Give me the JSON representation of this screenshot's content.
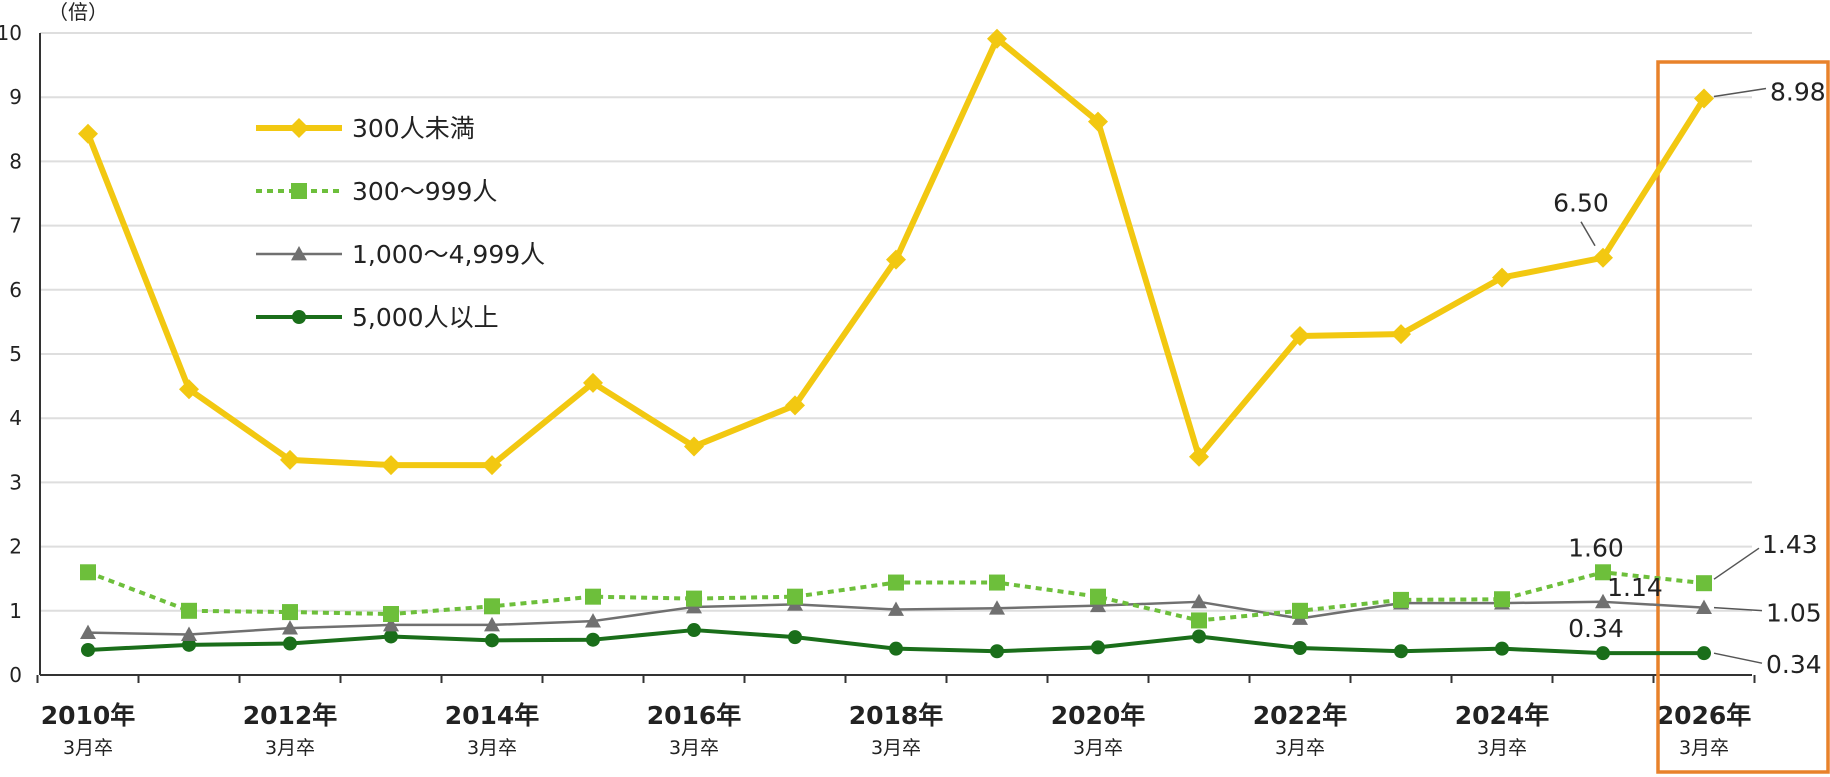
{
  "chart_data": {
    "type": "line",
    "y_unit": "（倍）",
    "ylim": [
      0,
      10
    ],
    "yticks": [
      "0",
      "1",
      "2",
      "3",
      "4",
      "5",
      "6",
      "7",
      "8",
      "9",
      "10"
    ],
    "x_labels": [
      {
        "year": "2010年",
        "sub": "3月卒"
      },
      {
        "year": "2012年",
        "sub": "3月卒"
      },
      {
        "year": "2014年",
        "sub": "3月卒"
      },
      {
        "year": "2016年",
        "sub": "3月卒"
      },
      {
        "year": "2018年",
        "sub": "3月卒"
      },
      {
        "year": "2020年",
        "sub": "3月卒"
      },
      {
        "year": "2022年",
        "sub": "3月卒"
      },
      {
        "year": "2024年",
        "sub": "3月卒"
      },
      {
        "year": "2026年",
        "sub": "3月卒"
      }
    ],
    "x": [
      2010,
      2011,
      2012,
      2013,
      2014,
      2015,
      2016,
      2017,
      2018,
      2019,
      2020,
      2021,
      2022,
      2023,
      2024,
      2025,
      2026
    ],
    "grid": "horizontal",
    "legend_position": "upper-left",
    "highlight_color": "#e8822b",
    "series": [
      {
        "name": "300人未満",
        "color": "#f2c811",
        "style": "solid",
        "marker": "diamond",
        "values": [
          8.43,
          4.45,
          3.35,
          3.27,
          3.27,
          4.55,
          3.56,
          4.2,
          6.47,
          9.91,
          8.62,
          3.4,
          5.28,
          5.31,
          6.19,
          6.5,
          8.98
        ]
      },
      {
        "name": "300～999人",
        "color": "#6dbf3b",
        "style": "dotted",
        "marker": "square",
        "values": [
          1.6,
          1.0,
          0.98,
          0.95,
          1.07,
          1.22,
          1.19,
          1.22,
          1.44,
          1.44,
          1.22,
          0.85,
          1.0,
          1.17,
          1.18,
          1.6,
          1.43
        ]
      },
      {
        "name": "1,000～4,999人",
        "color": "#707070",
        "style": "solid-thin",
        "marker": "triangle",
        "values": [
          0.66,
          0.63,
          0.73,
          0.78,
          0.78,
          0.84,
          1.06,
          1.1,
          1.02,
          1.04,
          1.08,
          1.14,
          0.88,
          1.12,
          1.12,
          1.14,
          1.05
        ]
      },
      {
        "name": "5,000人以上",
        "color": "#1a6e1a",
        "style": "solid",
        "marker": "circle",
        "values": [
          0.39,
          0.47,
          0.49,
          0.6,
          0.54,
          0.55,
          0.7,
          0.59,
          0.41,
          0.37,
          0.43,
          0.6,
          0.42,
          0.37,
          0.41,
          0.34,
          0.34
        ]
      }
    ],
    "annotations": [
      {
        "text": "6.50",
        "series": 0,
        "index": 15
      },
      {
        "text": "8.98",
        "series": 0,
        "index": 16
      },
      {
        "text": "1.60",
        "series": 1,
        "index": 15
      },
      {
        "text": "1.43",
        "series": 1,
        "index": 16
      },
      {
        "text": "1.14",
        "series": 2,
        "index": 15
      },
      {
        "text": "1.05",
        "series": 2,
        "index": 16
      },
      {
        "text": "0.34",
        "series": 3,
        "index": 15
      },
      {
        "text": "0.34",
        "series": 3,
        "index": 16
      }
    ]
  }
}
